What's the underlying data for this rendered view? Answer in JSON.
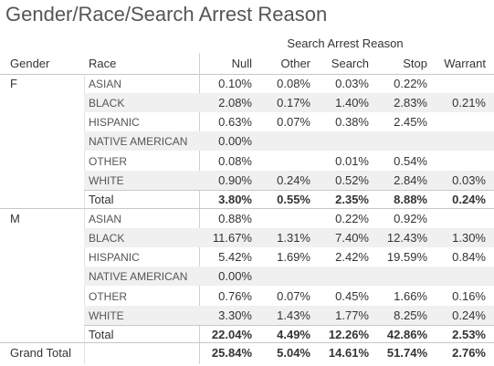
{
  "title": "Gender/Race/Search Arrest Reason",
  "column_group_label": "Search Arrest Reason",
  "row_headers": [
    "Gender",
    "Race"
  ],
  "columns": [
    "Null",
    "Other",
    "Search",
    "Stop",
    "Warrant"
  ],
  "chart_data": {
    "type": "table",
    "title": "Gender/Race/Search Arrest Reason",
    "column_group": "Search Arrest Reason",
    "columns": [
      "Null",
      "Other",
      "Search",
      "Stop",
      "Warrant"
    ],
    "groups": [
      {
        "gender": "F",
        "rows": [
          {
            "race": "ASIAN",
            "values": [
              "0.10%",
              "0.08%",
              "0.03%",
              "0.22%",
              ""
            ]
          },
          {
            "race": "BLACK",
            "values": [
              "2.08%",
              "0.17%",
              "1.40%",
              "2.83%",
              "0.21%"
            ]
          },
          {
            "race": "HISPANIC",
            "values": [
              "0.63%",
              "0.07%",
              "0.38%",
              "2.45%",
              ""
            ]
          },
          {
            "race": "NATIVE AMERICAN",
            "values": [
              "0.00%",
              "",
              "",
              "",
              ""
            ]
          },
          {
            "race": "OTHER",
            "values": [
              "0.08%",
              "",
              "0.01%",
              "0.54%",
              ""
            ]
          },
          {
            "race": "WHITE",
            "values": [
              "0.90%",
              "0.24%",
              "0.52%",
              "2.84%",
              "0.03%"
            ]
          }
        ],
        "total": {
          "label": "Total",
          "values": [
            "3.80%",
            "0.55%",
            "2.35%",
            "8.88%",
            "0.24%"
          ]
        }
      },
      {
        "gender": "M",
        "rows": [
          {
            "race": "ASIAN",
            "values": [
              "0.88%",
              "",
              "0.22%",
              "0.92%",
              ""
            ]
          },
          {
            "race": "BLACK",
            "values": [
              "11.67%",
              "1.31%",
              "7.40%",
              "12.43%",
              "1.30%"
            ]
          },
          {
            "race": "HISPANIC",
            "values": [
              "5.42%",
              "1.69%",
              "2.42%",
              "19.59%",
              "0.84%"
            ]
          },
          {
            "race": "NATIVE AMERICAN",
            "values": [
              "0.00%",
              "",
              "",
              "",
              ""
            ]
          },
          {
            "race": "OTHER",
            "values": [
              "0.76%",
              "0.07%",
              "0.45%",
              "1.66%",
              "0.16%"
            ]
          },
          {
            "race": "WHITE",
            "values": [
              "3.30%",
              "1.43%",
              "1.77%",
              "8.25%",
              "0.24%"
            ]
          }
        ],
        "total": {
          "label": "Total",
          "values": [
            "22.04%",
            "4.49%",
            "12.26%",
            "42.86%",
            "2.53%"
          ]
        }
      }
    ],
    "grand_total": {
      "label": "Grand Total",
      "values": [
        "25.84%",
        "5.04%",
        "14.61%",
        "51.74%",
        "2.76%"
      ]
    }
  }
}
